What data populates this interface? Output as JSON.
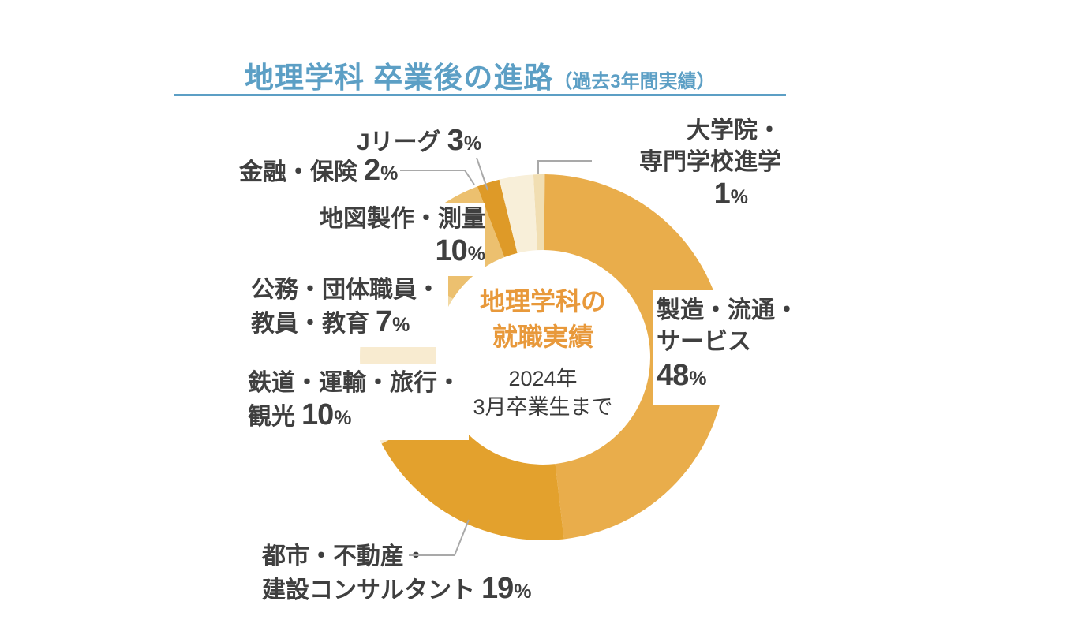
{
  "title": {
    "main": "地理学科 卒業後の進路",
    "sub": "（過去3年間実績）"
  },
  "colors": {
    "title_blue": "#5C9FC5",
    "label_gray": "#3F3F3F",
    "center_orange": "#E8993B",
    "leader_gray": "#A9A9A9",
    "background": "#FFFFFF"
  },
  "percent_sign": "%",
  "center": {
    "title_line1": "地理学科の",
    "title_line2": "就職実績",
    "sub_line1": "2024年",
    "sub_line2": "3月卒業生まで"
  },
  "labels": {
    "grad": {
      "line1": "大学院・",
      "line2": "専門学校進学",
      "value": "1"
    },
    "mfg": {
      "line1": "製造・流通・",
      "line2": "サービス",
      "value": "48"
    },
    "urban": {
      "line1": "都市・不動産・",
      "line2": "建設コンサルタント",
      "value": "19"
    },
    "rail": {
      "line1": "鉄道・運輸・旅行・",
      "line2": "観光",
      "value": "10"
    },
    "public": {
      "line1": "公務・団体職員・",
      "line2": "教員・教育",
      "value": "7"
    },
    "map": {
      "line1": "地図製作・測量",
      "value": "10"
    },
    "finance": {
      "text": "金融・保険",
      "value": "2"
    },
    "jleague": {
      "text": "Jリーグ",
      "value": "3"
    }
  },
  "chart_data": {
    "type": "pie",
    "subtype": "donut",
    "title": "地理学科 卒業後の進路（過去3年間実績）",
    "center_label": "地理学科の就職実績 2024年3月卒業生まで",
    "legend_position": "around",
    "segments": [
      {
        "label": "大学院・専門学校進学",
        "value": 1,
        "color": "#F1DEB2"
      },
      {
        "label": "製造・流通・サービス",
        "value": 48,
        "color": "#E9AD4B"
      },
      {
        "label": "都市・不動産・建設コンサルタント",
        "value": 19,
        "color": "#E3A12D"
      },
      {
        "label": "鉄道・運輸・旅行・観光",
        "value": 10,
        "color": "#F8EBD0"
      },
      {
        "label": "公務・団体職員・教員・教育",
        "value": 7,
        "color": "#F2D9A4"
      },
      {
        "label": "地図製作・測量",
        "value": 10,
        "color": "#ECC06F"
      },
      {
        "label": "金融・保険",
        "value": 2,
        "color": "#DE9A28"
      },
      {
        "label": "Jリーグ",
        "value": 3,
        "color": "#F8EFD9"
      }
    ]
  }
}
